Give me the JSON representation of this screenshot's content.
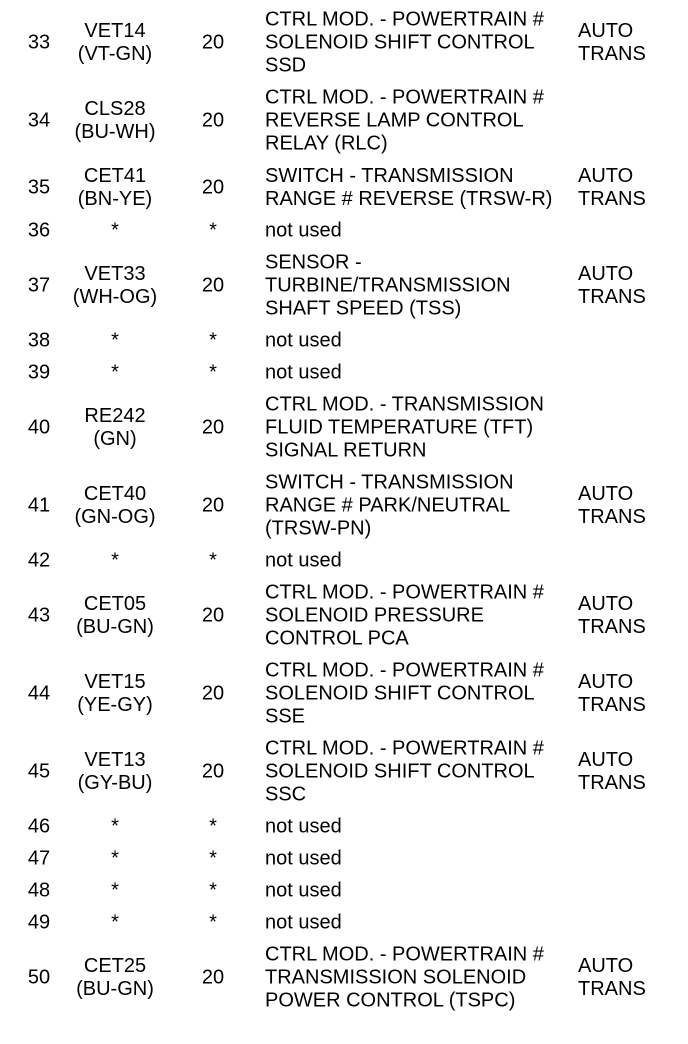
{
  "rows": [
    {
      "pin": "33",
      "circuit": [
        "VET14",
        "(VT-GN)"
      ],
      "gauge": "20",
      "desc": [
        "CTRL MOD. - POWERTRAIN #",
        "SOLENOID SHIFT CONTROL",
        "SSD"
      ],
      "note": [
        "AUTO",
        "TRANS"
      ]
    },
    {
      "pin": "34",
      "circuit": [
        "CLS28",
        "(BU-WH)"
      ],
      "gauge": "20",
      "desc": [
        "CTRL MOD. - POWERTRAIN #",
        "REVERSE LAMP CONTROL",
        "RELAY (RLC)"
      ],
      "note": []
    },
    {
      "pin": "35",
      "circuit": [
        "CET41",
        "(BN-YE)"
      ],
      "gauge": "20",
      "desc": [
        "SWITCH - TRANSMISSION",
        "RANGE # REVERSE (TRSW-R)"
      ],
      "note": [
        "AUTO",
        "TRANS"
      ]
    },
    {
      "pin": "36",
      "circuit": [
        "*"
      ],
      "gauge": "*",
      "desc": [
        "not used"
      ],
      "note": []
    },
    {
      "pin": "37",
      "circuit": [
        "VET33",
        "(WH-OG)"
      ],
      "gauge": "20",
      "desc": [
        "SENSOR -",
        "TURBINE/TRANSMISSION",
        "SHAFT SPEED (TSS)"
      ],
      "note": [
        "AUTO",
        "TRANS"
      ]
    },
    {
      "pin": "38",
      "circuit": [
        "*"
      ],
      "gauge": "*",
      "desc": [
        "not used"
      ],
      "note": []
    },
    {
      "pin": "39",
      "circuit": [
        "*"
      ],
      "gauge": "*",
      "desc": [
        "not used"
      ],
      "note": []
    },
    {
      "pin": "40",
      "circuit": [
        "RE242",
        "(GN)"
      ],
      "gauge": "20",
      "desc": [
        "CTRL MOD. - TRANSMISSION",
        "FLUID TEMPERATURE (TFT)",
        "SIGNAL RETURN"
      ],
      "note": []
    },
    {
      "pin": "41",
      "circuit": [
        "CET40",
        "(GN-OG)"
      ],
      "gauge": "20",
      "desc": [
        "SWITCH - TRANSMISSION",
        "RANGE # PARK/NEUTRAL",
        "(TRSW-PN)"
      ],
      "note": [
        "AUTO",
        "TRANS"
      ]
    },
    {
      "pin": "42",
      "circuit": [
        "*"
      ],
      "gauge": "*",
      "desc": [
        "not used"
      ],
      "note": []
    },
    {
      "pin": "43",
      "circuit": [
        "CET05",
        "(BU-GN)"
      ],
      "gauge": "20",
      "desc": [
        "CTRL MOD. - POWERTRAIN #",
        "SOLENOID PRESSURE",
        "CONTROL PCA"
      ],
      "note": [
        "AUTO",
        "TRANS"
      ]
    },
    {
      "pin": "44",
      "circuit": [
        "VET15",
        "(YE-GY)"
      ],
      "gauge": "20",
      "desc": [
        "CTRL MOD. - POWERTRAIN #",
        "SOLENOID SHIFT CONTROL",
        "SSE"
      ],
      "note": [
        "AUTO",
        "TRANS"
      ]
    },
    {
      "pin": "45",
      "circuit": [
        "VET13",
        "(GY-BU)"
      ],
      "gauge": "20",
      "desc": [
        "CTRL MOD. - POWERTRAIN #",
        "SOLENOID SHIFT CONTROL",
        "SSC"
      ],
      "note": [
        "AUTO",
        "TRANS"
      ]
    },
    {
      "pin": "46",
      "circuit": [
        "*"
      ],
      "gauge": "*",
      "desc": [
        "not used"
      ],
      "note": []
    },
    {
      "pin": "47",
      "circuit": [
        "*"
      ],
      "gauge": "*",
      "desc": [
        "not used"
      ],
      "note": []
    },
    {
      "pin": "48",
      "circuit": [
        "*"
      ],
      "gauge": "*",
      "desc": [
        "not used"
      ],
      "note": []
    },
    {
      "pin": "49",
      "circuit": [
        "*"
      ],
      "gauge": "*",
      "desc": [
        "not used"
      ],
      "note": []
    },
    {
      "pin": "50",
      "circuit": [
        "CET25",
        "(BU-GN)"
      ],
      "gauge": "20",
      "desc": [
        "CTRL MOD. - POWERTRAIN #",
        "TRANSMISSION SOLENOID",
        "POWER CONTROL (TSPC)"
      ],
      "note": [
        "AUTO",
        "TRANS"
      ]
    }
  ]
}
